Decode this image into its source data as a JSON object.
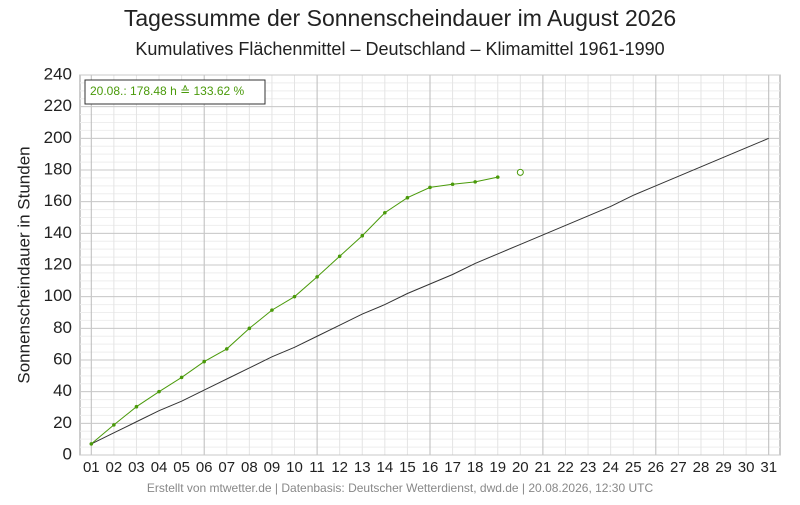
{
  "chart_data": {
    "type": "line",
    "title": "Tagessumme der Sonnenscheindauer im August 2026",
    "subtitle": "Kumulatives Flächenmittel – Deutschland – Klimamittel 1961-1990",
    "y_label": "Sonnenscheindauer in Stunden",
    "annotation": "20.08.: 178.48 h ≙ 133.62 %",
    "footer": "Erstellt von mtwetter.de | Datenbasis: Deutscher Wetterdienst, dwd.de | 20.08.2026, 12:30 UTC",
    "categories": [
      "01",
      "02",
      "03",
      "04",
      "05",
      "06",
      "07",
      "08",
      "09",
      "10",
      "11",
      "12",
      "13",
      "14",
      "15",
      "16",
      "17",
      "18",
      "19",
      "20",
      "21",
      "22",
      "23",
      "24",
      "25",
      "26",
      "27",
      "28",
      "29",
      "30",
      "31"
    ],
    "series": [
      {
        "color": "#333333",
        "marker": false,
        "values": [
          7,
          14,
          21,
          28,
          34,
          41,
          48,
          55,
          62,
          68,
          75,
          82,
          89,
          95,
          102,
          108,
          114,
          121,
          127,
          133,
          139,
          145,
          151,
          157,
          164,
          170,
          176,
          182,
          188,
          194,
          200
        ]
      },
      {
        "color": "#4a9a0a",
        "marker": "dot",
        "values": [
          7,
          19,
          30.5,
          40,
          49,
          59,
          67,
          80,
          91.5,
          100,
          112.5,
          125.5,
          138.5,
          153,
          162.5,
          169,
          171,
          172.5,
          175.5,
          null,
          null,
          null,
          null,
          null,
          null,
          null,
          null,
          null,
          null,
          null,
          null
        ]
      },
      {
        "color": "#4a9a0a",
        "marker": "open",
        "values": [
          null,
          null,
          null,
          null,
          null,
          null,
          null,
          null,
          null,
          null,
          null,
          null,
          null,
          null,
          null,
          null,
          null,
          null,
          null,
          178.48,
          null,
          null,
          null,
          null,
          null,
          null,
          null,
          null,
          null,
          null,
          null
        ]
      }
    ],
    "ylim": [
      0,
      240
    ],
    "yticks": [
      0,
      20,
      40,
      60,
      80,
      100,
      120,
      140,
      160,
      180,
      200,
      220,
      240
    ],
    "grid": true
  }
}
